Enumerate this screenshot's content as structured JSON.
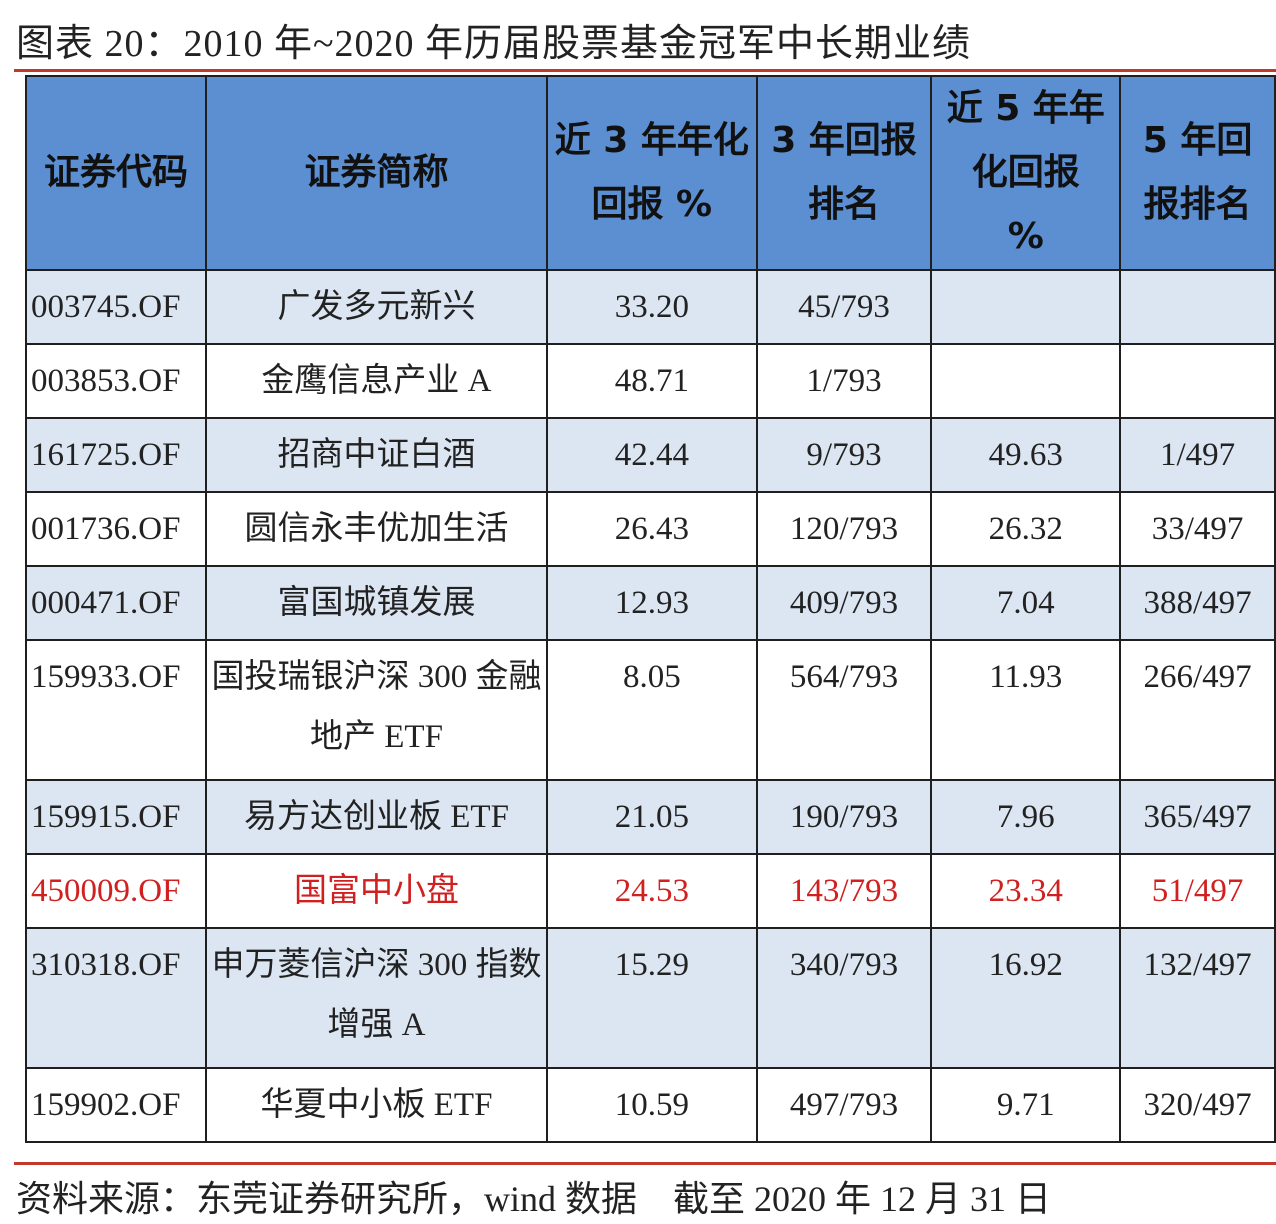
{
  "header": {
    "title": "图表 20：2010 年~2020 年历届股票基金冠军中长期业绩"
  },
  "table": {
    "columns": [
      [
        "证券代码"
      ],
      [
        "证券简称"
      ],
      [
        "近 3 年年化",
        "回报 %"
      ],
      [
        "3 年回报",
        "排名"
      ],
      [
        "近 5 年年",
        "化回报",
        "%"
      ],
      [
        "5 年回",
        "报排名"
      ]
    ],
    "rows": [
      [
        "003745.OF",
        "广发多元新兴",
        "33.20",
        "45/793",
        null,
        null
      ],
      [
        "003853.OF",
        "金鹰信息产业 A",
        "48.71",
        "1/793",
        null,
        null
      ],
      [
        "161725.OF",
        "招商中证白酒",
        "42.44",
        "9/793",
        "49.63",
        "1/497"
      ],
      [
        "001736.OF",
        "圆信永丰优加生活",
        "26.43",
        "120/793",
        "26.32",
        "33/497"
      ],
      [
        "000471.OF",
        "富国城镇发展",
        "12.93",
        "409/793",
        "7.04",
        "388/497"
      ],
      [
        "159933.OF",
        "国投瑞银沪深 300 金融地产 ETF",
        "8.05",
        "564/793",
        "11.93",
        "266/497"
      ],
      [
        "159915.OF",
        "易方达创业板 ETF",
        "21.05",
        "190/793",
        "7.96",
        "365/497"
      ],
      [
        "450009.OF",
        "国富中小盘",
        "24.53",
        "143/793",
        "23.34",
        "51/497"
      ],
      [
        "310318.OF",
        "申万菱信沪深 300 指数增强 A",
        "15.29",
        "340/793",
        "16.92",
        "132/497"
      ],
      [
        "159902.OF",
        "华夏中小板 ETF",
        "10.59",
        "497/793",
        "9.71",
        "320/497"
      ]
    ]
  },
  "footer": {
    "source": "资料来源：东莞证券研究所，wind 数据    截至 2020 年 12 月 31 日"
  }
}
